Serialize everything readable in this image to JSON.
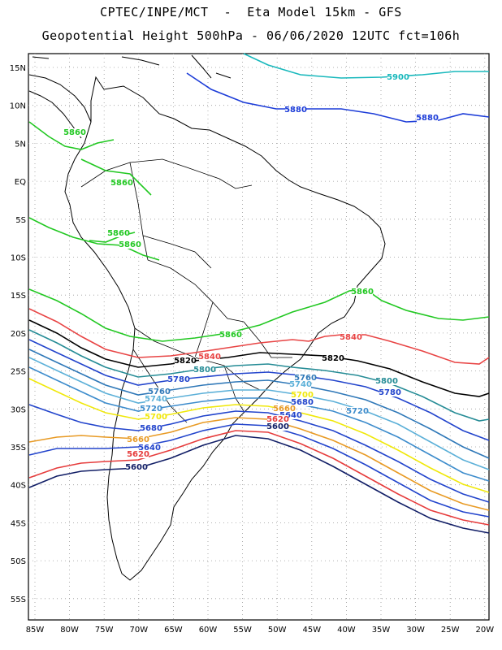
{
  "title_line1": "CPTEC/INPE/MCT  -  Eta Model 15km - GFS",
  "title_line2": "Geopotential Height 500hPa - 06/06/2020 12UTC fct=106h",
  "lat_labels": [
    "15N",
    "10N",
    "5N",
    "EQ",
    "5S",
    "10S",
    "15S",
    "20S",
    "25S",
    "30S",
    "35S",
    "40S",
    "45S",
    "50S",
    "55S"
  ],
  "lon_labels": [
    "85W",
    "80W",
    "75W",
    "70W",
    "65W",
    "60W",
    "55W",
    "50W",
    "45W",
    "40W",
    "35W",
    "30W",
    "25W",
    "20W"
  ],
  "colors": {
    "c5500": "#111e66",
    "c5620": "#e63c3c",
    "c5660": "#e89a24",
    "c5700": "#f0e80a",
    "c5720": "#3d8ccc",
    "c5740": "#5cb0d8",
    "c5760": "#2f78b8",
    "c5780": "#2244cc",
    "c5800": "#268c96",
    "c5820": "#000000",
    "c5840": "#e84444",
    "c5860": "#22c822",
    "c5880": "#1c3cd8",
    "c5900": "#18b8bc"
  },
  "contour_labels": [
    {
      "text": "5900",
      "color": "#18b8bc"
    },
    {
      "text": "5880",
      "color": "#1c3cd8"
    },
    {
      "text": "5880",
      "color": "#1c3cd8"
    },
    {
      "text": "5860",
      "color": "#22c822"
    },
    {
      "text": "5860",
      "color": "#22c822"
    },
    {
      "text": "5860",
      "color": "#22c822"
    },
    {
      "text": "5860",
      "color": "#22c822"
    },
    {
      "text": "5860",
      "color": "#22c822"
    },
    {
      "text": "5860",
      "color": "#22c822"
    },
    {
      "text": "5840",
      "color": "#e84444"
    },
    {
      "text": "5840",
      "color": "#e84444"
    },
    {
      "text": "5820",
      "color": "#000000"
    },
    {
      "text": "5820",
      "color": "#000000"
    },
    {
      "text": "5800",
      "color": "#268c96"
    },
    {
      "text": "5800",
      "color": "#268c96"
    },
    {
      "text": "5780",
      "color": "#2244cc"
    },
    {
      "text": "5780",
      "color": "#2244cc"
    },
    {
      "text": "5760",
      "color": "#2f78b8"
    },
    {
      "text": "5760",
      "color": "#2f78b8"
    },
    {
      "text": "5740",
      "color": "#5cb0d8"
    },
    {
      "text": "5740",
      "color": "#5cb0d8"
    },
    {
      "text": "5720",
      "color": "#3d8ccc"
    },
    {
      "text": "5720",
      "color": "#3d8ccc"
    },
    {
      "text": "5700",
      "color": "#f0e80a"
    },
    {
      "text": "5700",
      "color": "#f0e80a"
    },
    {
      "text": "5680",
      "color": "#2244cc"
    },
    {
      "text": "5680",
      "color": "#2244cc"
    },
    {
      "text": "5660",
      "color": "#e89a24"
    },
    {
      "text": "5660",
      "color": "#e89a24"
    },
    {
      "text": "5640",
      "color": "#2244cc"
    },
    {
      "text": "5640",
      "color": "#2244cc"
    },
    {
      "text": "5620",
      "color": "#e63c3c"
    },
    {
      "text": "5620",
      "color": "#e63c3c"
    },
    {
      "text": "5600",
      "color": "#111e66"
    },
    {
      "text": "5600",
      "color": "#111e66"
    }
  ]
}
